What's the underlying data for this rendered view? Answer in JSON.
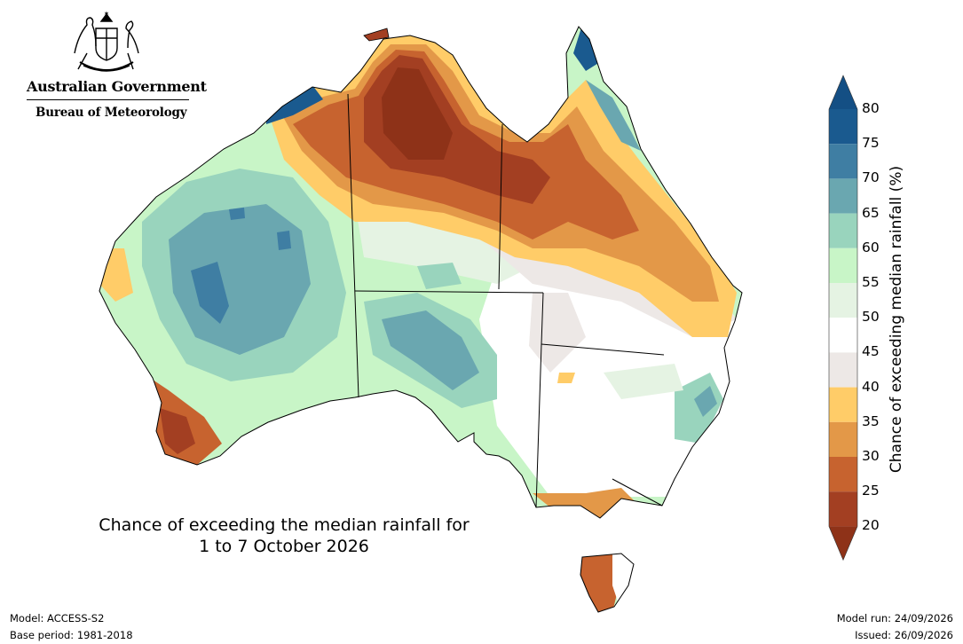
{
  "header": {
    "gov_name": "Australian Government",
    "agency": "Bureau of Meteorology"
  },
  "map": {
    "title_line1": "Chance of exceeding the median rainfall for",
    "title_line2": "1 to 7 October 2026",
    "region": "Australia"
  },
  "colorbar": {
    "label": "Chance of exceeding median rainfall (%)",
    "ticks": [
      "80",
      "75",
      "70",
      "65",
      "60",
      "55",
      "50",
      "45",
      "40",
      "35",
      "30",
      "25",
      "20"
    ],
    "bins": [
      {
        "range": "75-80",
        "color": "#1a5a8f"
      },
      {
        "range": "70-75",
        "color": "#3f7ea3"
      },
      {
        "range": "65-70",
        "color": "#6aa7b0"
      },
      {
        "range": "60-65",
        "color": "#99d4bd"
      },
      {
        "range": "55-60",
        "color": "#c8f5c7"
      },
      {
        "range": "50-55",
        "color": "#e5f3e3"
      },
      {
        "range": "45-50",
        "color": "#ffffff"
      },
      {
        "range": "40-45",
        "color": "#ede8e6"
      },
      {
        "range": "35-40",
        "color": "#ffcc68"
      },
      {
        "range": "30-35",
        "color": "#e39848"
      },
      {
        "range": "25-30",
        "color": "#c7632f"
      },
      {
        "range": "20-25",
        "color": "#a33f22"
      }
    ],
    "over_color": "#144f84",
    "under_color": "#8e3218"
  },
  "footer": {
    "model": "Model: ACCESS-S2",
    "base_period": "Base period: 1981-2018",
    "model_run": "Model run: 24/09/2026",
    "issued": "Issued: 26/09/2026"
  }
}
